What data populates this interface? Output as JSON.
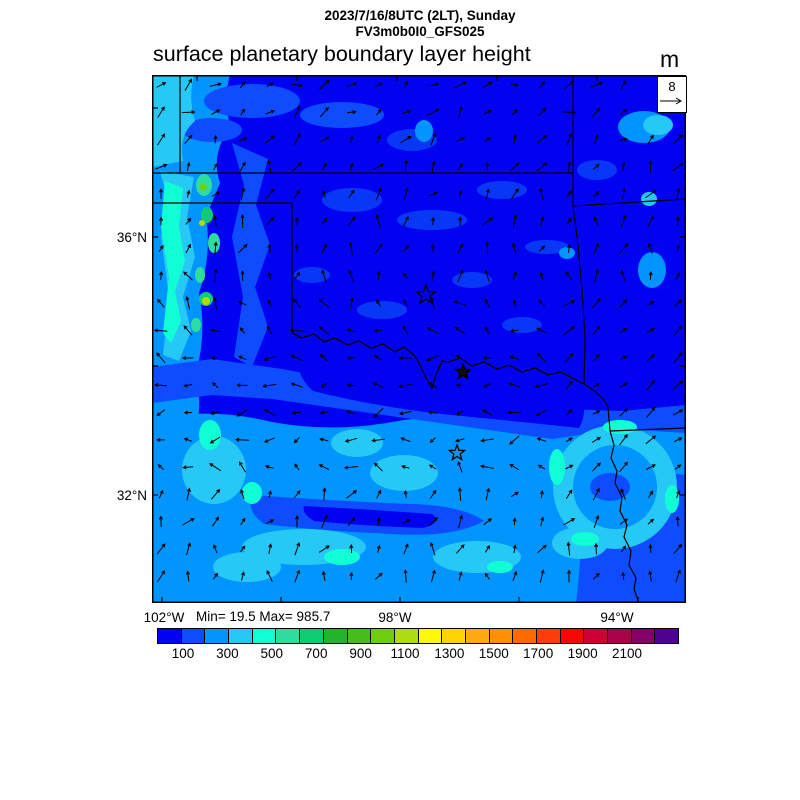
{
  "header": {
    "datetime_line": "2023/7/16/8UTC (2LT), Sunday",
    "model_line": "FV3m0b0I0_GFS025",
    "plot_title": "surface planetary boundary layer height",
    "units_label": "m"
  },
  "wind_reference": {
    "value": "8"
  },
  "map_axes": {
    "lat_labels": [
      "36°N",
      "32°N"
    ],
    "lon_labels": [
      "102°W",
      "98°W",
      "94°W"
    ]
  },
  "stats_line": "Min= 19.5 Max= 985.7",
  "colorbar": {
    "tick_labels": [
      "100",
      "300",
      "500",
      "700",
      "900",
      "1100",
      "1300",
      "1500",
      "1700",
      "1900",
      "2100"
    ],
    "segment_colors": [
      "#0202F2",
      "#0D4DFF",
      "#0095FF",
      "#26C8F5",
      "#10FFD4",
      "#2EDD9E",
      "#0DCC74",
      "#22B42A",
      "#46BE19",
      "#6FCD0E",
      "#AEDC12",
      "#FFF80B",
      "#FFD400",
      "#FFA90E",
      "#FF9100",
      "#FF6A00",
      "#FF3C0A",
      "#F80800",
      "#CF0038",
      "#A80248",
      "#870065",
      "#4F0292"
    ]
  },
  "field_colors": {
    "base": "#0202F2",
    "royal": "#0D4DFF",
    "mottle": "#0838F5",
    "azure": "#0095FF",
    "sky": "#26C8F5",
    "cyan": "#10FFD4"
  }
}
